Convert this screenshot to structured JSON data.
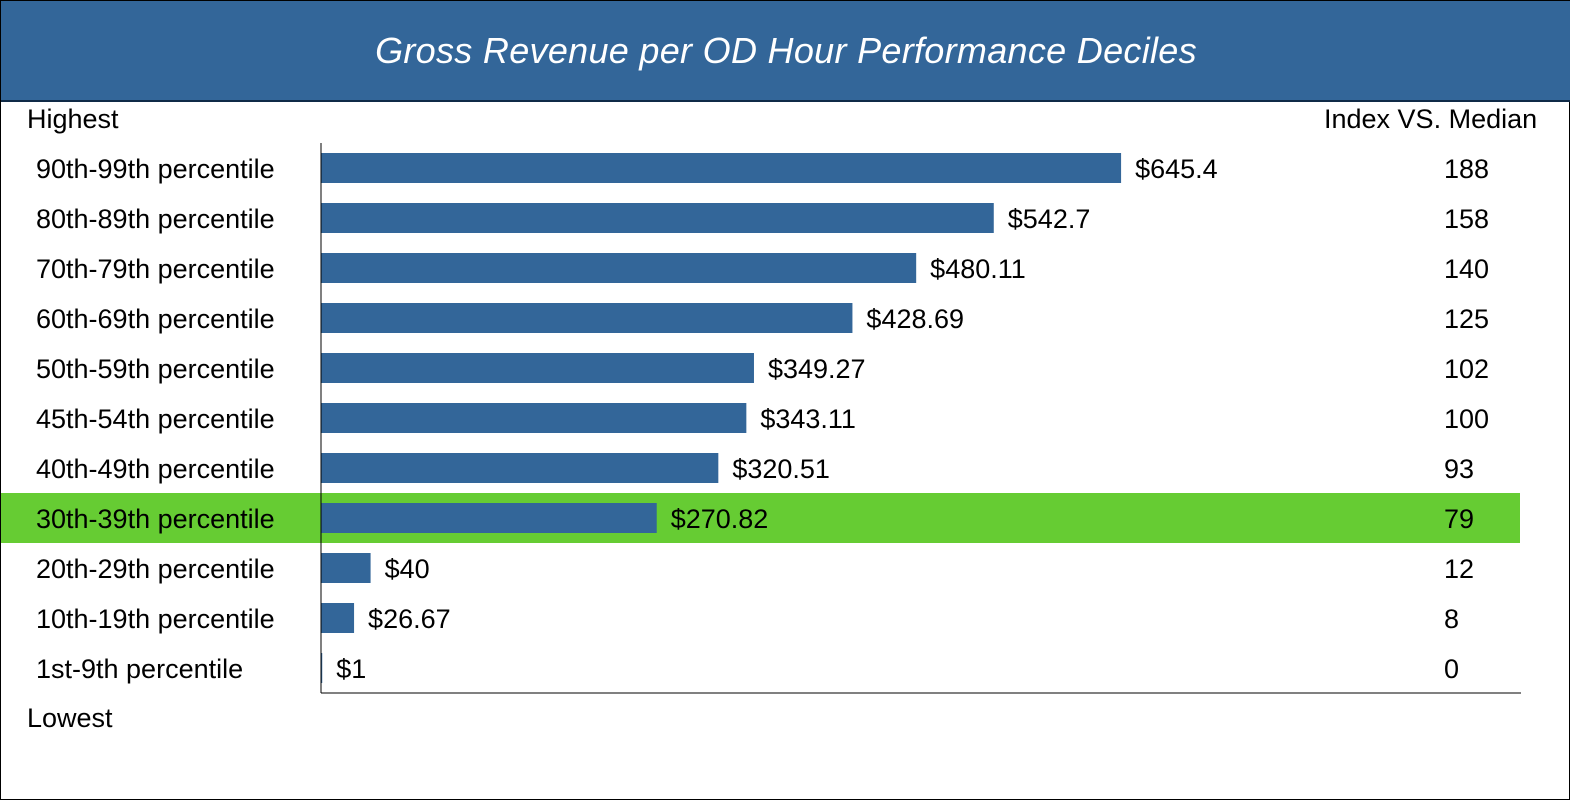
{
  "title": "Gross Revenue per OD Hour Performance Deciles",
  "labels": {
    "top": "Highest",
    "bottom": "Lowest",
    "index_header": "Index VS. Median"
  },
  "colors": {
    "title_bg": "#336699",
    "bar": "#336699",
    "highlight": "#66cc33"
  },
  "chart_data": {
    "type": "bar",
    "orientation": "horizontal",
    "categories": [
      "90th-99th percentile",
      "80th-89th percentile",
      "70th-79th percentile",
      "60th-69th percentile",
      "50th-59th percentile",
      "45th-54th percentile",
      "40th-49th percentile",
      "30th-39th percentile",
      "20th-29th percentile",
      "10th-19th percentile",
      "1st-9th percentile"
    ],
    "values": [
      645.4,
      542.7,
      480.11,
      428.69,
      349.27,
      343.11,
      320.51,
      270.82,
      40,
      26.67,
      1
    ],
    "value_labels": [
      "$645.4",
      "$542.7",
      "$480.11",
      "$428.69",
      "$349.27",
      "$343.11",
      "$320.51",
      "$270.82",
      "$40",
      "$26.67",
      "$1"
    ],
    "index_vs_median": [
      "188",
      "158",
      "140",
      "125",
      "102",
      "100",
      "93",
      "79",
      "12",
      "8",
      "0"
    ],
    "highlighted_category": "30th-39th percentile",
    "xlim": [
      0,
      968
    ]
  }
}
